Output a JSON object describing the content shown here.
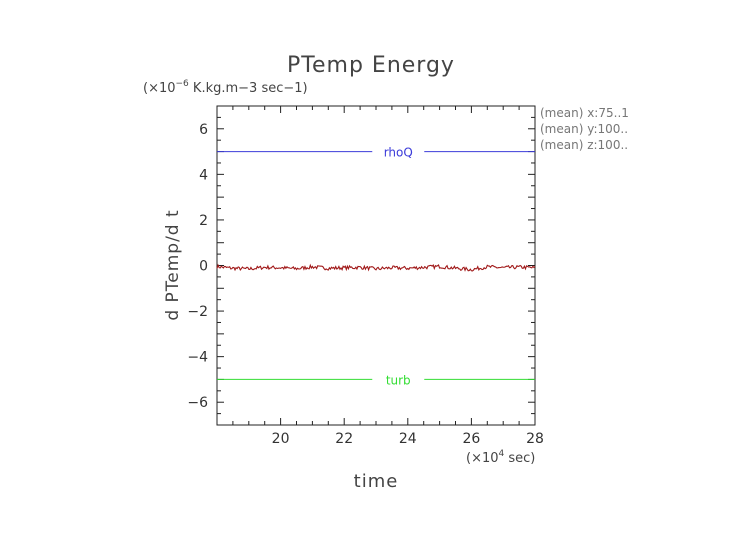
{
  "chart_data": {
    "type": "line",
    "title": "PTemp Energy",
    "units_prefix": "(×10",
    "units_exp": "−6",
    "units_suffix": " K.kg.m−3 sec−1)",
    "ylabel": "d PTemp/d t",
    "xlabel": "time",
    "x_units_prefix": "(×10",
    "x_units_exp": "4",
    "x_units_suffix": " sec)",
    "xlim": [
      18,
      28
    ],
    "ylim": [
      -7,
      7
    ],
    "x_ticks": [
      20,
      22,
      24,
      26,
      28
    ],
    "y_ticks": [
      -6,
      -4,
      -2,
      0,
      2,
      4,
      6
    ],
    "x_tick_labels": [
      "20",
      "22",
      "24",
      "26",
      "28"
    ],
    "y_tick_labels": [
      "−6",
      "−4",
      "−2",
      "0",
      "2",
      "4",
      "6"
    ],
    "annotations": [
      "(mean) x:75..1",
      "(mean) y:100..",
      "(mean) z:100.."
    ],
    "series": [
      {
        "name": "rhoQ",
        "color": "#3b3bd9",
        "constant": 5.0,
        "label_x": 23.7
      },
      {
        "name": "turb",
        "color": "#33dd33",
        "constant": -5.0,
        "label_x": 23.7
      },
      {
        "color": "#a01818",
        "x": [
          18.0,
          18.5,
          19.0,
          19.5,
          20.0,
          20.5,
          21.0,
          21.5,
          22.0,
          22.5,
          23.0,
          23.5,
          24.0,
          24.5,
          25.0,
          25.5,
          26.0,
          26.5,
          27.0,
          27.5,
          28.0
        ],
        "values": [
          -0.05,
          -0.12,
          -0.15,
          -0.08,
          -0.1,
          -0.14,
          -0.06,
          -0.12,
          -0.1,
          -0.08,
          -0.15,
          -0.1,
          -0.12,
          -0.08,
          -0.04,
          -0.12,
          -0.18,
          -0.06,
          -0.1,
          -0.07,
          -0.1
        ],
        "noise": 0.08
      }
    ]
  }
}
